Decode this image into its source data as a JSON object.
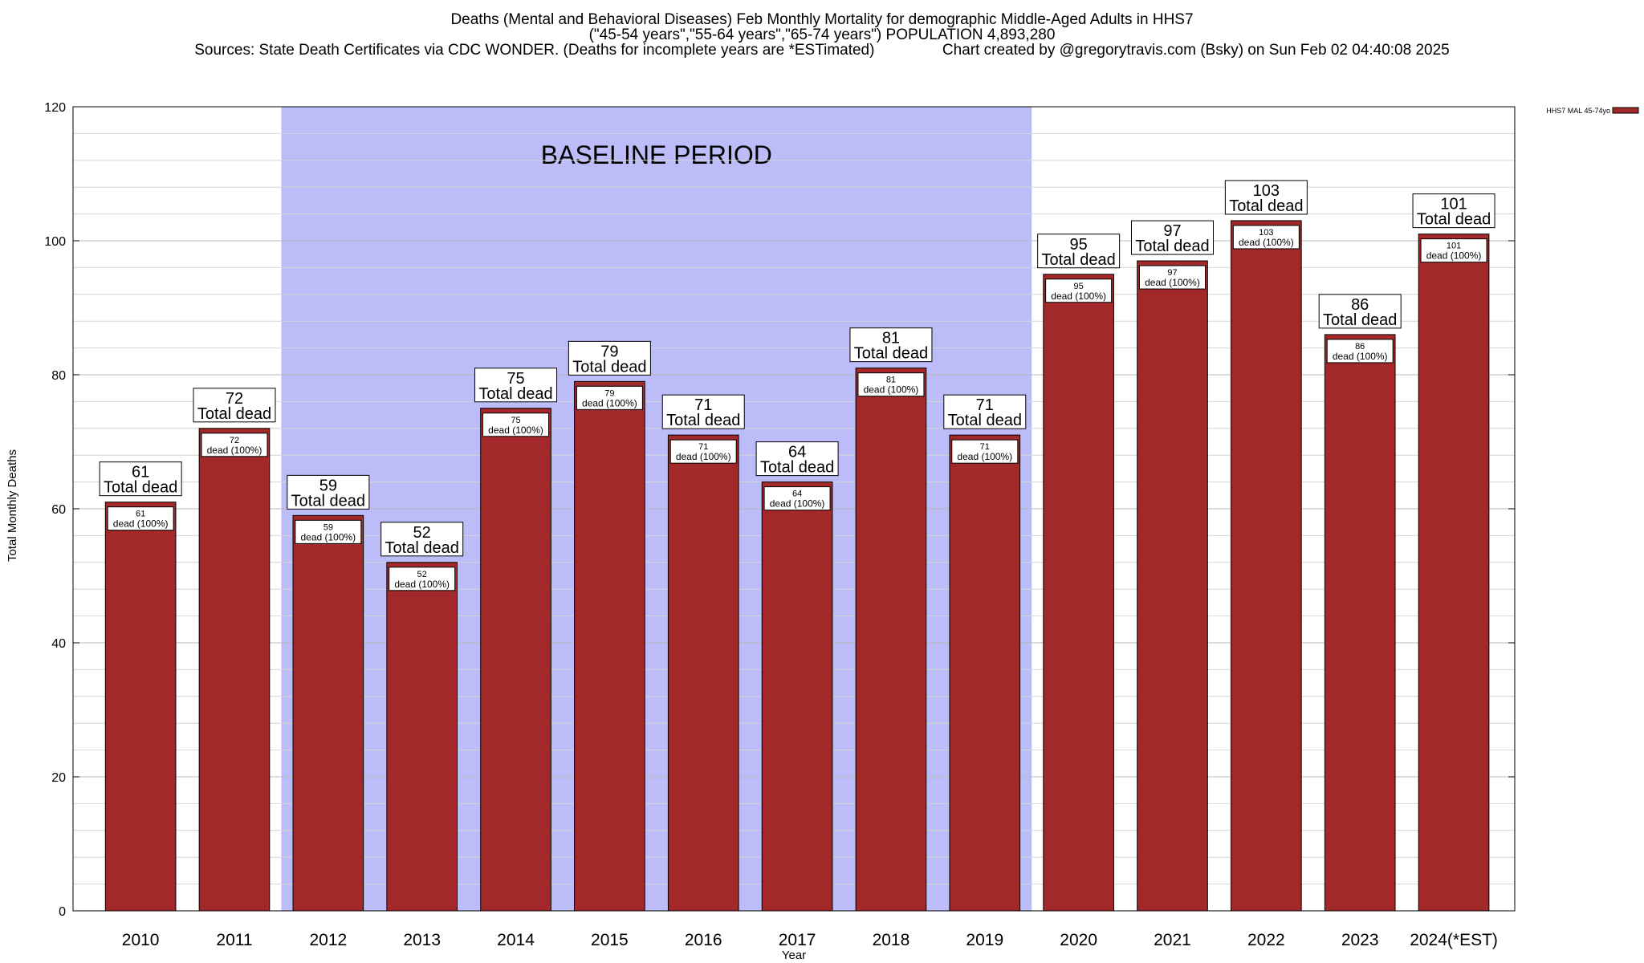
{
  "chart_data": {
    "type": "bar",
    "title_lines": [
      "Deaths (Mental and Behavioral Diseases) Feb Monthly Mortality for demographic Middle-Aged Adults in HHS7",
      "(\"45-54 years\",\"55-64 years\",\"65-74 years\") POPULATION 4,893,280",
      "Sources: State Death Certificates via CDC WONDER. (Deaths for incomplete years are *ESTimated)                Chart created by @gregorytravis.com (Bsky) on Sun Feb 02 04:40:08 2025"
    ],
    "xlabel": "Year",
    "ylabel": "Total Monthly Deaths",
    "ylim": [
      0,
      120
    ],
    "y_ticks": [
      0,
      20,
      40,
      60,
      80,
      100,
      120
    ],
    "minor_y_step": 4,
    "grid": true,
    "categories": [
      "2010",
      "2011",
      "2012",
      "2013",
      "2014",
      "2015",
      "2016",
      "2017",
      "2018",
      "2019",
      "2020",
      "2021",
      "2022",
      "2023",
      "2024(*EST)"
    ],
    "series": [
      {
        "name": "HHS7 MAL 45-74yo",
        "color": "#a3282a",
        "values": [
          61,
          72,
          59,
          52,
          75,
          79,
          71,
          64,
          81,
          71,
          95,
          97,
          103,
          86,
          101
        ]
      }
    ],
    "top_label_text": "Total dead",
    "inner_label_text": "dead (100%)",
    "shaded_region": {
      "label": "BASELINE PERIOD",
      "from_category": "2012",
      "to_category": "2019",
      "color": "#bcbcf9"
    },
    "legend": {
      "position": "top-right",
      "label": "HHS7 MAL 45-74yo"
    }
  }
}
